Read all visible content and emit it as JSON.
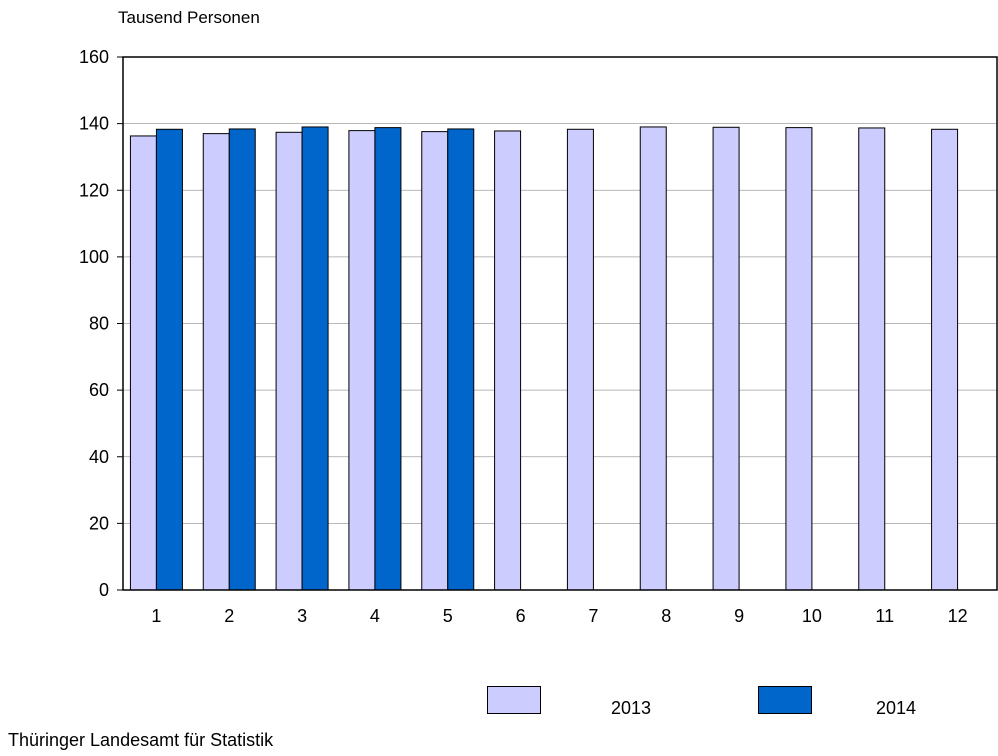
{
  "chart_data": {
    "type": "bar",
    "ylabel": "Tausend Personen",
    "categories": [
      "1",
      "2",
      "3",
      "4",
      "5",
      "6",
      "7",
      "8",
      "9",
      "10",
      "11",
      "12"
    ],
    "ylim": [
      0,
      160
    ],
    "yticks": [
      0,
      20,
      40,
      60,
      80,
      100,
      120,
      140,
      160
    ],
    "grid": true,
    "legend_position": "bottom-right",
    "series": [
      {
        "name": "2013",
        "color": "#ccccff",
        "values": [
          136.3,
          137.0,
          137.4,
          137.9,
          137.6,
          137.8,
          138.3,
          139.0,
          138.9,
          138.8,
          138.7,
          138.3
        ]
      },
      {
        "name": "2014",
        "color": "#0066cc",
        "values": [
          138.3,
          138.4,
          139.0,
          138.8,
          138.4,
          null,
          null,
          null,
          null,
          null,
          null,
          null
        ]
      }
    ]
  },
  "source": "Thüringer Landesamt für Statistik"
}
